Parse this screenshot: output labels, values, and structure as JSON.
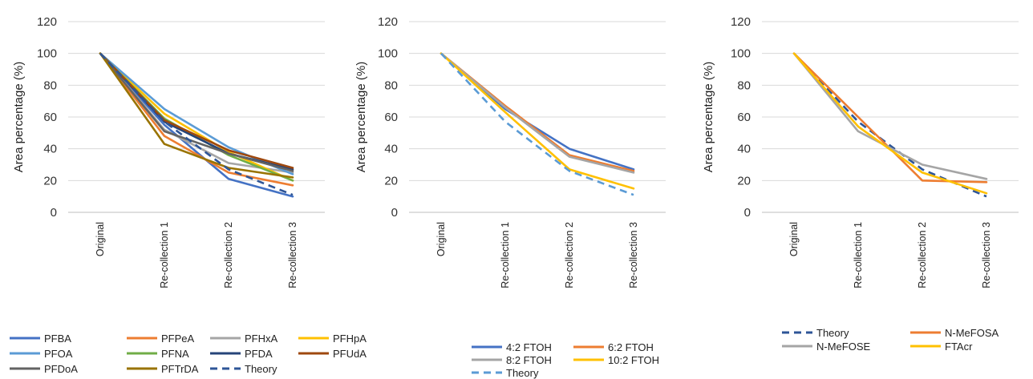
{
  "chart_data": [
    {
      "type": "line",
      "ylabel": "Area percentage (%)",
      "ylim": [
        0,
        120
      ],
      "yticks": [
        0,
        20,
        40,
        60,
        80,
        100,
        120
      ],
      "grid": true,
      "legend_position": "bottom",
      "categories": [
        "Original",
        "Re-collection 1",
        "Re-collection 2",
        "Re-collection 3"
      ],
      "series": [
        {
          "name": "PFBA",
          "color": "#4472C4",
          "dash": false,
          "values": [
            100,
            55,
            21,
            10
          ]
        },
        {
          "name": "PFPeA",
          "color": "#ED7D31",
          "dash": false,
          "values": [
            100,
            48,
            25,
            17
          ]
        },
        {
          "name": "PFHxA",
          "color": "#A5A5A5",
          "dash": false,
          "values": [
            100,
            52,
            31,
            25
          ]
        },
        {
          "name": "PFHpA",
          "color": "#FFC000",
          "dash": false,
          "values": [
            100,
            62,
            38,
            20
          ]
        },
        {
          "name": "PFOA",
          "color": "#5B9BD5",
          "dash": false,
          "values": [
            100,
            65,
            41,
            24
          ]
        },
        {
          "name": "PFNA",
          "color": "#70AD47",
          "dash": false,
          "values": [
            100,
            59,
            36,
            20
          ]
        },
        {
          "name": "PFDA",
          "color": "#264478",
          "dash": false,
          "values": [
            100,
            57,
            37,
            27
          ]
        },
        {
          "name": "PFUdA",
          "color": "#9E480E",
          "dash": false,
          "values": [
            100,
            58,
            39,
            28
          ]
        },
        {
          "name": "PFDoA",
          "color": "#636363",
          "dash": false,
          "values": [
            100,
            51,
            37,
            26
          ]
        },
        {
          "name": "PFTrDA",
          "color": "#997300",
          "dash": false,
          "values": [
            100,
            43,
            28,
            22
          ]
        },
        {
          "name": "Theory",
          "color": "#2E5597",
          "dash": true,
          "values": [
            100,
            57,
            27,
            11
          ]
        }
      ]
    },
    {
      "type": "line",
      "ylabel": "Area percentage (%)",
      "ylim": [
        0,
        120
      ],
      "yticks": [
        0,
        20,
        40,
        60,
        80,
        100,
        120
      ],
      "grid": true,
      "legend_position": "bottom",
      "categories": [
        "Original",
        "Re-collection 1",
        "Re-collection 2",
        "Re-collection 3"
      ],
      "series": [
        {
          "name": "4:2 FTOH",
          "color": "#4472C4",
          "dash": false,
          "values": [
            100,
            65,
            40,
            27
          ]
        },
        {
          "name": "6:2 FTOH",
          "color": "#ED7D31",
          "dash": false,
          "values": [
            100,
            67,
            36,
            26
          ]
        },
        {
          "name": "8:2 FTOH",
          "color": "#A5A5A5",
          "dash": false,
          "values": [
            100,
            66,
            35,
            25
          ]
        },
        {
          "name": "10:2 FTOH",
          "color": "#FFC000",
          "dash": false,
          "values": [
            100,
            63,
            27,
            15
          ]
        },
        {
          "name": "Theory",
          "color": "#5B9BD5",
          "dash": true,
          "values": [
            100,
            57,
            26,
            11
          ]
        }
      ]
    },
    {
      "type": "line",
      "ylabel": "Area percentage (%)",
      "ylim": [
        0,
        120
      ],
      "yticks": [
        0,
        20,
        40,
        60,
        80,
        100,
        120
      ],
      "grid": true,
      "legend_position": "bottom",
      "categories": [
        "Original",
        "Re-collection 1",
        "Re-collection 2",
        "Re-collection 3"
      ],
      "series": [
        {
          "name": "Theory",
          "color": "#2E5597",
          "dash": true,
          "values": [
            100,
            57,
            27,
            10
          ]
        },
        {
          "name": "N-MeFOSA",
          "color": "#ED7D31",
          "dash": false,
          "values": [
            100,
            60,
            20,
            19
          ]
        },
        {
          "name": "N-MeFOSE",
          "color": "#A5A5A5",
          "dash": false,
          "values": [
            100,
            51,
            30,
            21
          ]
        },
        {
          "name": "FTAcr",
          "color": "#FFC000",
          "dash": false,
          "values": [
            100,
            54,
            25,
            12
          ]
        }
      ]
    }
  ]
}
